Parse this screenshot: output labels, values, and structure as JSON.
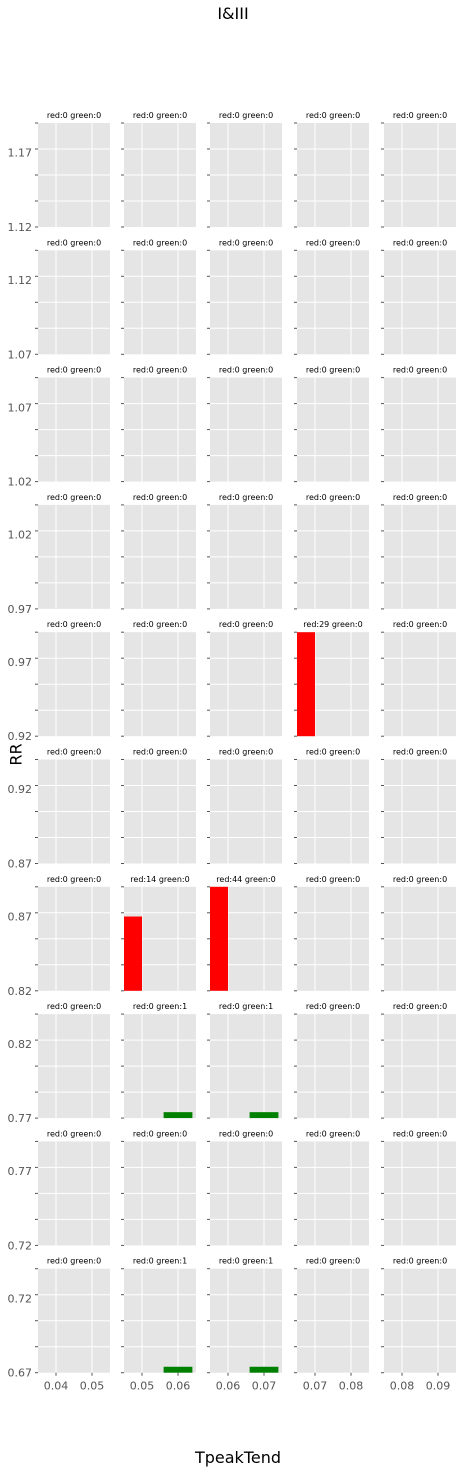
{
  "figure": {
    "suptitle": "I&III",
    "supxlabel": "TpeakTend",
    "supylabel": "RR"
  },
  "colors": {
    "red": "#ff0000",
    "green": "#008000",
    "panel_bg": "#e5e5e5",
    "grid": "#ffffff"
  },
  "chart_data": {
    "type": "bar",
    "layout": "grid of small multiples, 10 rows x 5 columns, shared x per column, shared y per row",
    "grid": true,
    "columns": [
      {
        "xlim": [
          0.035,
          0.055
        ],
        "xticks": [
          0.04,
          0.05
        ],
        "xtick_labels": [
          "0.04",
          "0.05"
        ]
      },
      {
        "xlim": [
          0.045,
          0.065
        ],
        "xticks": [
          0.05,
          0.06
        ],
        "xtick_labels": [
          "0.05",
          "0.06"
        ]
      },
      {
        "xlim": [
          0.055,
          0.075
        ],
        "xticks": [
          0.06,
          0.07
        ],
        "xtick_labels": [
          "0.06",
          "0.07"
        ]
      },
      {
        "xlim": [
          0.065,
          0.085
        ],
        "xticks": [
          0.07,
          0.08
        ],
        "xtick_labels": [
          "0.07",
          "0.08"
        ]
      },
      {
        "xlim": [
          0.075,
          0.095
        ],
        "xticks": [
          0.08,
          0.09
        ],
        "xtick_labels": [
          "0.08",
          "0.09"
        ]
      }
    ],
    "rows": [
      {
        "ylim": [
          1.12,
          1.19
        ],
        "ytick_labels": [
          "1.17",
          "1.12"
        ]
      },
      {
        "ylim": [
          1.07,
          1.14
        ],
        "ytick_labels": [
          "1.12",
          "1.07"
        ]
      },
      {
        "ylim": [
          1.02,
          1.09
        ],
        "ytick_labels": [
          "1.07",
          "1.02"
        ]
      },
      {
        "ylim": [
          0.97,
          1.04
        ],
        "ytick_labels": [
          "1.02",
          "0.97"
        ]
      },
      {
        "ylim": [
          0.92,
          0.99
        ],
        "ytick_labels": [
          "0.97",
          "0.92"
        ]
      },
      {
        "ylim": [
          0.87,
          0.94
        ],
        "ytick_labels": [
          "0.92",
          "0.87"
        ]
      },
      {
        "ylim": [
          0.82,
          0.89
        ],
        "ytick_labels": [
          "0.87",
          "0.82"
        ]
      },
      {
        "ylim": [
          0.77,
          0.84
        ],
        "ytick_labels": [
          "0.82",
          "0.77"
        ]
      },
      {
        "ylim": [
          0.72,
          0.79
        ],
        "ytick_labels": [
          "0.77",
          "0.72"
        ]
      },
      {
        "ylim": [
          0.67,
          0.74
        ],
        "ytick_labels": [
          "0.72",
          "0.67"
        ]
      }
    ],
    "panels": [
      [
        "red:0 green:0",
        "red:0 green:0",
        "red:0 green:0",
        "red:0 green:0",
        "red:0 green:0"
      ],
      [
        "red:0 green:0",
        "red:0 green:0",
        "red:0 green:0",
        "red:0 green:0",
        "red:0 green:0"
      ],
      [
        "red:0 green:0",
        "red:0 green:0",
        "red:0 green:0",
        "red:0 green:0",
        "red:0 green:0"
      ],
      [
        "red:0 green:0",
        "red:0 green:0",
        "red:0 green:0",
        "red:0 green:0",
        "red:0 green:0"
      ],
      [
        "red:0 green:0",
        "red:0 green:0",
        "red:0 green:0",
        "red:29 green:0",
        "red:0 green:0"
      ],
      [
        "red:0 green:0",
        "red:0 green:0",
        "red:0 green:0",
        "red:0 green:0",
        "red:0 green:0"
      ],
      [
        "red:0 green:0",
        "red:14 green:0",
        "red:44 green:0",
        "red:0 green:0",
        "red:0 green:0"
      ],
      [
        "red:0 green:0",
        "red:0 green:1",
        "red:0 green:1",
        "red:0 green:0",
        "red:0 green:0"
      ],
      [
        "red:0 green:0",
        "red:0 green:0",
        "red:0 green:0",
        "red:0 green:0",
        "red:0 green:0"
      ],
      [
        "red:0 green:0",
        "red:0 green:1",
        "red:0 green:1",
        "red:0 green:0",
        "red:0 green:0"
      ]
    ],
    "bars": [
      {
        "row": 4,
        "col": 3,
        "series": "red",
        "x0": 0.065,
        "x1": 0.07,
        "y0": 0.92,
        "y1": 0.99
      },
      {
        "row": 6,
        "col": 1,
        "series": "red",
        "x0": 0.045,
        "x1": 0.05,
        "y0": 0.82,
        "y1": 0.87
      },
      {
        "row": 6,
        "col": 2,
        "series": "red",
        "x0": 0.055,
        "x1": 0.06,
        "y0": 0.82,
        "y1": 0.89
      },
      {
        "row": 7,
        "col": 1,
        "series": "green",
        "x0": 0.056,
        "x1": 0.064,
        "y0": 0.77,
        "y1": 0.774
      },
      {
        "row": 7,
        "col": 2,
        "series": "green",
        "x0": 0.066,
        "x1": 0.074,
        "y0": 0.77,
        "y1": 0.774
      },
      {
        "row": 9,
        "col": 1,
        "series": "green",
        "x0": 0.056,
        "x1": 0.064,
        "y0": 0.67,
        "y1": 0.674
      },
      {
        "row": 9,
        "col": 2,
        "series": "green",
        "x0": 0.066,
        "x1": 0.074,
        "y0": 0.67,
        "y1": 0.674
      }
    ]
  }
}
